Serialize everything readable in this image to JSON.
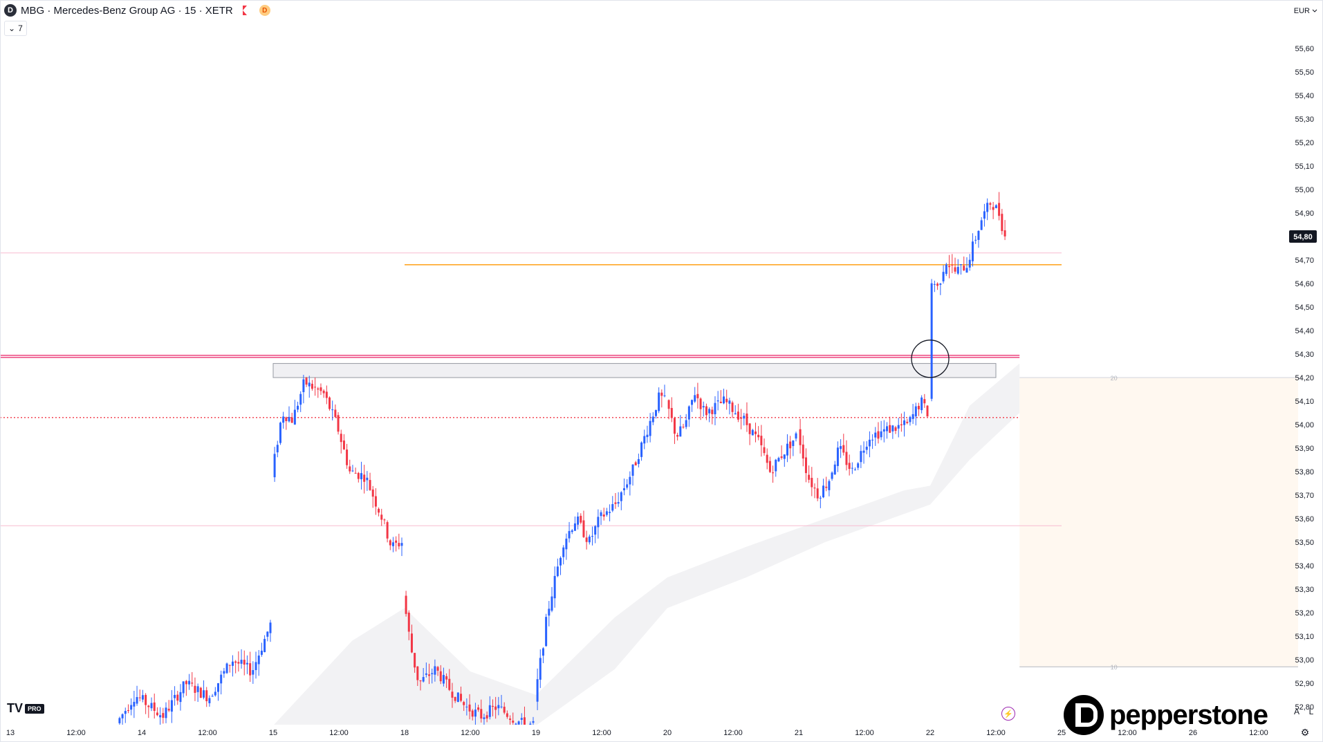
{
  "header": {
    "symbol_badge": "D",
    "title": "MBG · Mercedes-Benz Group AG · 15 · XETR",
    "d_badge": "D",
    "indicators_toggle": "7"
  },
  "currency": "EUR",
  "last_price": "54,80",
  "tv_logo": "TV",
  "tv_pro": "PRO",
  "brand": "pepperstone",
  "scale_buttons": {
    "auto": "A",
    "log": "L"
  },
  "chart_data": {
    "type": "candlestick",
    "ylim": [
      52.72,
      55.71
    ],
    "y_ticks": [
      52.8,
      52.9,
      53.0,
      53.1,
      53.2,
      53.3,
      53.4,
      53.5,
      53.6,
      53.7,
      53.8,
      53.9,
      54.0,
      54.1,
      54.2,
      54.3,
      54.4,
      54.5,
      54.6,
      54.7,
      54.8,
      54.9,
      55.0,
      55.1,
      55.2,
      55.3,
      55.4,
      55.5,
      55.6
    ],
    "y_tick_labels": [
      "52,80",
      "52,90",
      "53,00",
      "53,10",
      "53,20",
      "53,30",
      "53,40",
      "53,50",
      "53,60",
      "53,70",
      "53,80",
      "53,90",
      "54,00",
      "54,10",
      "54,20",
      "54,30",
      "54,40",
      "54,50",
      "54,60",
      "54,70",
      "54,80",
      "54,90",
      "55,00",
      "55,10",
      "55,20",
      "55,30",
      "55,40",
      "55,50",
      "55,60"
    ],
    "x_range": [
      0,
      10
    ],
    "x_ticks": [
      {
        "t": 0.0,
        "label": "13"
      },
      {
        "t": 0.5,
        "label": "12:00"
      },
      {
        "t": 1.0,
        "label": "14"
      },
      {
        "t": 1.5,
        "label": "12:00"
      },
      {
        "t": 2.0,
        "label": "15"
      },
      {
        "t": 2.5,
        "label": "12:00"
      },
      {
        "t": 3.0,
        "label": "18"
      },
      {
        "t": 3.5,
        "label": "12:00"
      },
      {
        "t": 4.0,
        "label": "19"
      },
      {
        "t": 4.5,
        "label": "12:00"
      },
      {
        "t": 5.0,
        "label": "20"
      },
      {
        "t": 5.5,
        "label": "12:00"
      },
      {
        "t": 6.0,
        "label": "21"
      },
      {
        "t": 6.5,
        "label": "12:00"
      },
      {
        "t": 7.0,
        "label": "22"
      },
      {
        "t": 7.5,
        "label": "12:00"
      },
      {
        "t": 8.0,
        "label": "25"
      },
      {
        "t": 8.5,
        "label": "12:00"
      },
      {
        "t": 9.0,
        "label": "26"
      },
      {
        "t": 9.5,
        "label": "12:00"
      }
    ],
    "sessions": [
      {
        "t0": 0.82,
        "t1": 1.99,
        "path": [
          [
            0,
            52.73
          ],
          [
            0.12,
            52.85
          ],
          [
            0.3,
            52.76
          ],
          [
            0.45,
            52.9
          ],
          [
            0.6,
            52.84
          ],
          [
            0.75,
            53.0
          ],
          [
            0.88,
            52.95
          ],
          [
            1.0,
            53.15
          ]
        ]
      },
      {
        "t0": 2.0,
        "t1": 2.99,
        "path": [
          [
            0,
            53.78
          ],
          [
            0.08,
            54.05
          ],
          [
            0.16,
            54.02
          ],
          [
            0.25,
            54.18
          ],
          [
            0.4,
            54.13
          ],
          [
            0.5,
            54.0
          ],
          [
            0.6,
            53.8
          ],
          [
            0.72,
            53.78
          ],
          [
            0.85,
            53.6
          ],
          [
            0.92,
            53.48
          ],
          [
            1.0,
            53.5
          ]
        ]
      },
      {
        "t0": 3.0,
        "t1": 3.99,
        "path": [
          [
            0,
            53.28
          ],
          [
            0.06,
            53.05
          ],
          [
            0.12,
            52.9
          ],
          [
            0.25,
            52.96
          ],
          [
            0.35,
            52.88
          ],
          [
            0.48,
            52.8
          ],
          [
            0.6,
            52.76
          ],
          [
            0.72,
            52.8
          ],
          [
            0.85,
            52.75
          ],
          [
            0.94,
            52.72
          ],
          [
            1.0,
            52.72
          ]
        ]
      },
      {
        "t0": 4.0,
        "t1": 4.99,
        "path": [
          [
            0,
            52.82
          ],
          [
            0.1,
            53.2
          ],
          [
            0.22,
            53.5
          ],
          [
            0.32,
            53.6
          ],
          [
            0.42,
            53.5
          ],
          [
            0.5,
            53.6
          ],
          [
            0.62,
            53.66
          ],
          [
            0.75,
            53.8
          ],
          [
            0.88,
            54.0
          ],
          [
            0.96,
            54.12
          ],
          [
            1.0,
            54.1
          ]
        ]
      },
      {
        "t0": 5.0,
        "t1": 5.99,
        "path": [
          [
            0,
            54.1
          ],
          [
            0.08,
            53.95
          ],
          [
            0.15,
            54.0
          ],
          [
            0.22,
            54.14
          ],
          [
            0.3,
            54.05
          ],
          [
            0.45,
            54.1
          ],
          [
            0.6,
            54.02
          ],
          [
            0.72,
            53.92
          ],
          [
            0.8,
            53.8
          ],
          [
            0.9,
            53.88
          ],
          [
            1.0,
            53.95
          ]
        ]
      },
      {
        "t0": 6.0,
        "t1": 6.99,
        "path": [
          [
            0,
            53.98
          ],
          [
            0.08,
            53.78
          ],
          [
            0.16,
            53.7
          ],
          [
            0.24,
            53.76
          ],
          [
            0.32,
            53.9
          ],
          [
            0.42,
            53.8
          ],
          [
            0.55,
            53.95
          ],
          [
            0.7,
            53.98
          ],
          [
            0.85,
            54.0
          ],
          [
            0.95,
            54.1
          ],
          [
            1.0,
            54.05
          ]
        ]
      },
      {
        "t0": 7.0,
        "t1": 7.58,
        "path": [
          [
            0,
            54.1
          ],
          [
            0.04,
            54.62
          ],
          [
            0.12,
            54.58
          ],
          [
            0.22,
            54.7
          ],
          [
            0.35,
            54.65
          ],
          [
            0.5,
            54.68
          ],
          [
            0.6,
            54.78
          ],
          [
            0.7,
            54.88
          ],
          [
            0.82,
            54.95
          ],
          [
            0.92,
            54.9
          ],
          [
            1.0,
            54.8
          ]
        ]
      }
    ],
    "last": 54.8,
    "levels": [
      {
        "price": 54.73,
        "t_end": 8.0,
        "color": "#f8bbd0",
        "style": "solid"
      },
      {
        "price": 54.68,
        "t_start": 3.0,
        "t_end": 8.0,
        "color": "#ffa726",
        "style": "solid"
      },
      {
        "price": 54.29,
        "t_end": 7.68,
        "color": "#e91e63",
        "style": "double"
      },
      {
        "price": 54.03,
        "t_end": 7.68,
        "color": "#f23645",
        "style": "dotted"
      },
      {
        "price": 53.57,
        "t_end": 8.0,
        "color": "#f8bbd0",
        "style": "solid"
      }
    ],
    "zone": {
      "t0": 2.0,
      "t1": 7.5,
      "p_top": 54.26,
      "p_bot": 54.2
    },
    "circle": {
      "t": 7.0,
      "price": 54.28
    },
    "fib_box": {
      "t0": 7.68,
      "t1": 9.8,
      "p_top": 54.2,
      "p_bot": 52.97,
      "top_label": "20",
      "bottom_label": "10"
    },
    "band": {
      "t": [
        2.0,
        2.6,
        3.0,
        3.5,
        4.0,
        4.6,
        5.0,
        5.6,
        6.2,
        6.8,
        7.0,
        7.3,
        7.68
      ],
      "upper": [
        52.72,
        53.08,
        53.22,
        52.95,
        52.85,
        53.18,
        53.35,
        53.48,
        53.6,
        53.72,
        53.74,
        54.08,
        54.26
      ],
      "lower": [
        52.72,
        52.72,
        52.72,
        52.72,
        52.72,
        52.96,
        53.22,
        53.35,
        53.5,
        53.62,
        53.66,
        53.85,
        54.05
      ]
    }
  }
}
